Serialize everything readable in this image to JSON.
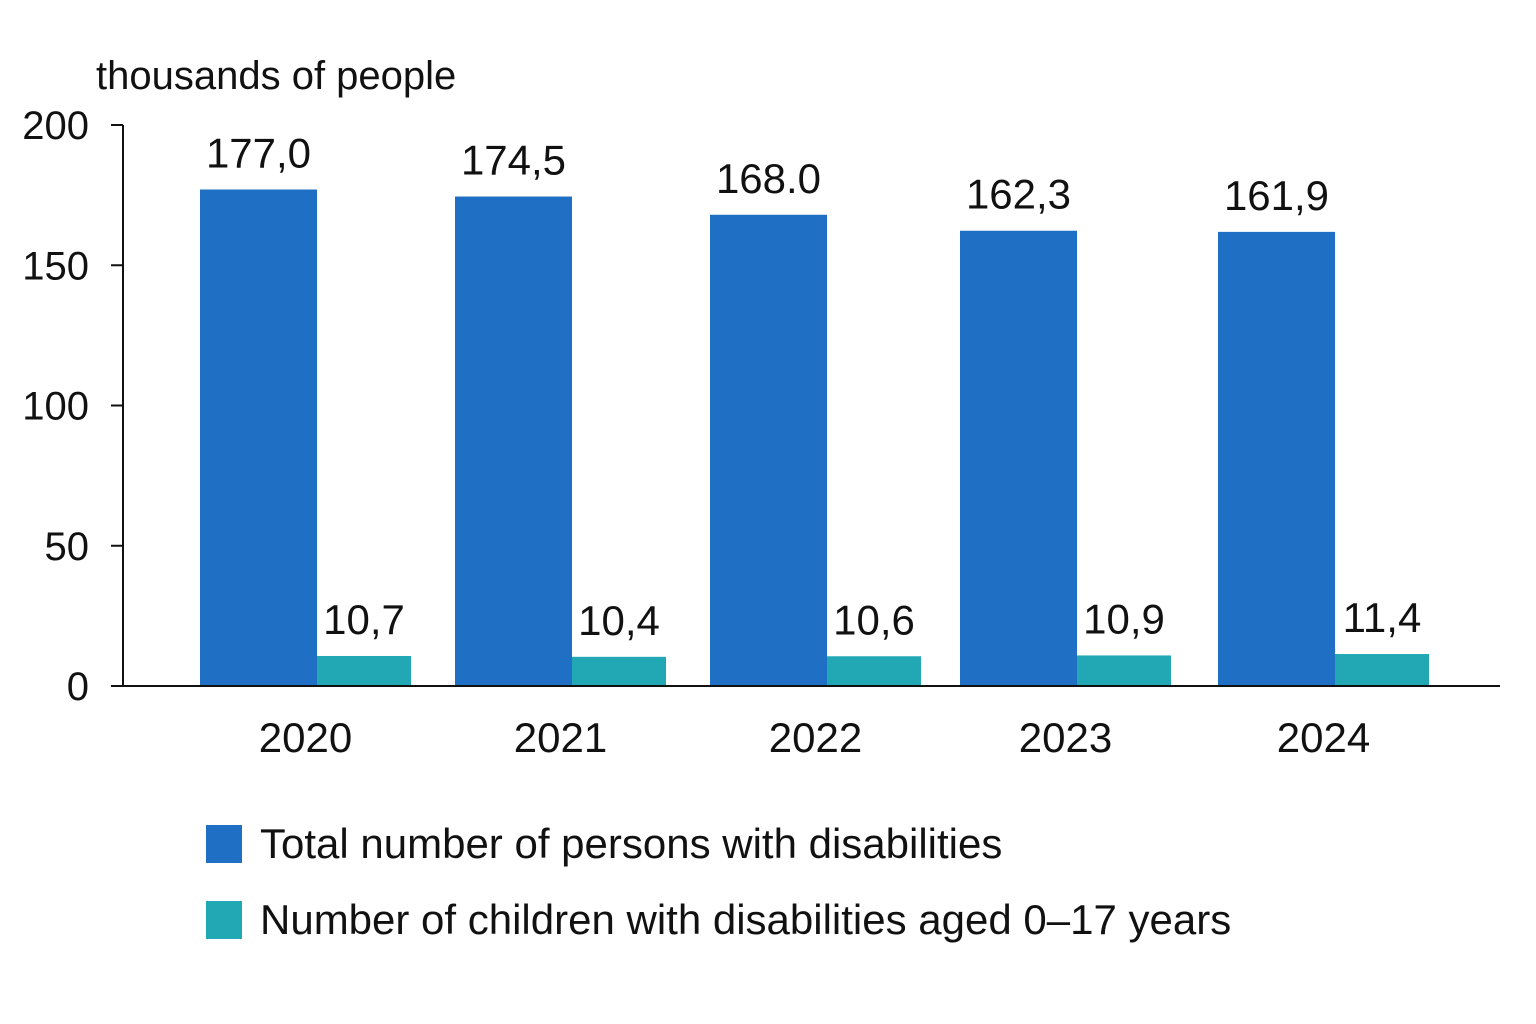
{
  "chart_data": {
    "type": "bar",
    "unit_label": "thousands of people",
    "categories": [
      "2020",
      "2021",
      "2022",
      "2023",
      "2024"
    ],
    "series": [
      {
        "name": "Total number of persons with disabilities",
        "color": "#1f6fc4",
        "values": [
          177.0,
          174.5,
          168.0,
          162.3,
          161.9
        ],
        "labels": [
          "177,0",
          "174,5",
          "168.0",
          "162,3",
          "161,9"
        ]
      },
      {
        "name": "Number of children with disabilities aged  0–17 years",
        "color": "#22a8b4",
        "values": [
          10.7,
          10.4,
          10.6,
          10.9,
          11.4
        ],
        "labels": [
          "10,7",
          "10,4",
          "10,6",
          "10,9",
          "11,4"
        ]
      }
    ],
    "ylim": [
      0,
      200
    ],
    "yticks": [
      "0",
      "50",
      "100",
      "150",
      "200"
    ],
    "grid": false,
    "legend_position": "bottom"
  }
}
